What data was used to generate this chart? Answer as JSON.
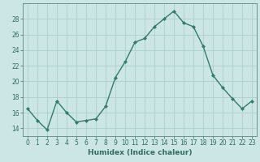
{
  "x": [
    0,
    1,
    2,
    3,
    4,
    5,
    6,
    7,
    8,
    9,
    10,
    11,
    12,
    13,
    14,
    15,
    16,
    17,
    18,
    19,
    20,
    21,
    22,
    23
  ],
  "y": [
    16.5,
    15.0,
    13.8,
    17.5,
    16.0,
    14.8,
    15.0,
    15.2,
    16.8,
    20.5,
    22.5,
    25.0,
    25.5,
    27.0,
    28.0,
    29.0,
    27.5,
    27.0,
    24.5,
    20.8,
    19.2,
    17.8,
    16.5,
    17.5
  ],
  "line_color": "#2e7d6e",
  "marker": "D",
  "marker_size": 2.2,
  "bg_color": "#cce5e5",
  "grid_color": "#aacfcf",
  "xlabel": "Humidex (Indice chaleur)",
  "xlim": [
    -0.5,
    23.5
  ],
  "ylim": [
    13,
    30
  ],
  "yticks": [
    14,
    16,
    18,
    20,
    22,
    24,
    26,
    28
  ],
  "xticks": [
    0,
    1,
    2,
    3,
    4,
    5,
    6,
    7,
    8,
    9,
    10,
    11,
    12,
    13,
    14,
    15,
    16,
    17,
    18,
    19,
    20,
    21,
    22,
    23
  ],
  "xlabel_fontsize": 6.5,
  "tick_fontsize": 5.5,
  "line_width": 1.0,
  "axis_color": "#2e6e60",
  "spine_color": "#5a8a80"
}
